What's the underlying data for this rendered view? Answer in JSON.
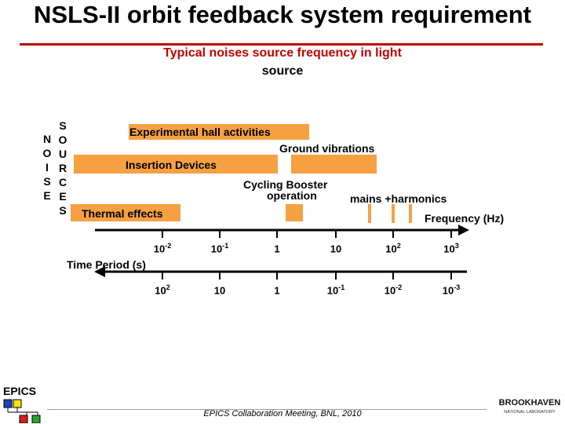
{
  "title": "NSLS-II orbit feedback system requirement",
  "subtitle_line1": "Typical noises source frequency in light",
  "subtitle_line2": "source",
  "vertical_labels": {
    "noise": [
      "N",
      "O",
      "I",
      "S",
      "E"
    ],
    "sources": [
      "S",
      "O",
      "U",
      "R",
      "C",
      "E",
      "S"
    ]
  },
  "bars": [
    {
      "id": "experimental-hall",
      "label": "Experimental hall activities"
    },
    {
      "id": "ground-vibrations",
      "label": "Ground vibrations"
    },
    {
      "id": "insertion-devices",
      "label": "Insertion Devices"
    },
    {
      "id": "cycling-booster",
      "label_line1": "Cycling Booster",
      "label_line2": "operation"
    },
    {
      "id": "mains-harmonics",
      "label": "mains +harmonics"
    },
    {
      "id": "thermal-effects",
      "label": "Thermal effects"
    }
  ],
  "frequency_axis": {
    "label": "Frequency (Hz)",
    "ticks": [
      {
        "base": "10",
        "exp": "-2"
      },
      {
        "base": "10",
        "exp": "-1"
      },
      {
        "base": "1",
        "exp": ""
      },
      {
        "base": "10",
        "exp": ""
      },
      {
        "base": "10",
        "exp": "2"
      },
      {
        "base": "10",
        "exp": "3"
      }
    ]
  },
  "period_axis": {
    "label": "Time Period (s)",
    "ticks": [
      {
        "base": "10",
        "exp": "2"
      },
      {
        "base": "10",
        "exp": ""
      },
      {
        "base": "1",
        "exp": ""
      },
      {
        "base": "10",
        "exp": "-1"
      },
      {
        "base": "10",
        "exp": "-2"
      },
      {
        "base": "10",
        "exp": "-3"
      }
    ]
  },
  "footer": "EPICS Collaboration Meeting, BNL, 2010",
  "logos": {
    "epics": "EPICS",
    "bnl_line1": "BROOKHAVEN",
    "bnl_line2": "NATIONAL LABORATORY"
  },
  "colors": {
    "accent": "#c00000",
    "bar": "#f5a142",
    "footer_line": "#9c9c9c"
  }
}
